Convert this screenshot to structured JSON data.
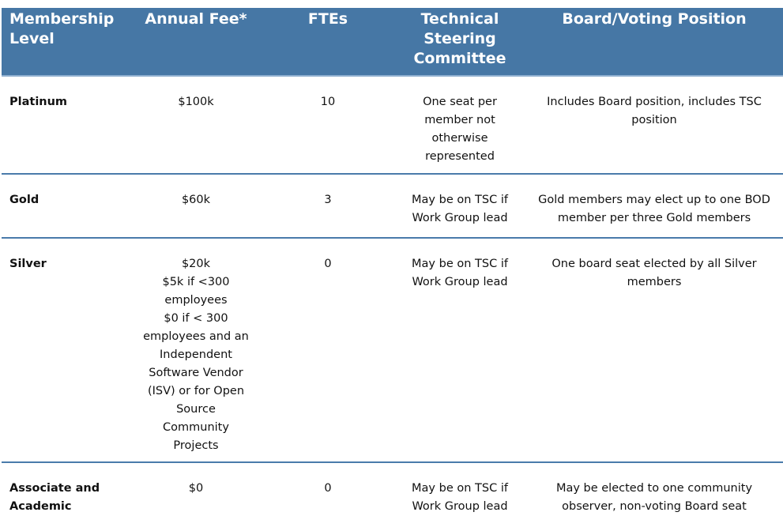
{
  "colors": {
    "header_bg": "#4677a5",
    "divider": "#4a7bab"
  },
  "headers": [
    "Membership Level",
    "Annual Fee*",
    "FTEs",
    "Technical Steering Committee",
    "Board/Voting Position"
  ],
  "rows": [
    {
      "level": "Platinum",
      "fee": [
        "$100k"
      ],
      "ftes": "10",
      "tsc": "One seat per member not otherwise represented",
      "board": "Includes Board position, includes TSC position"
    },
    {
      "level": "Gold",
      "fee": [
        "$60k"
      ],
      "ftes": "3",
      "tsc": "May be on TSC if Work Group lead",
      "board": "Gold members may elect up to one BOD member per three Gold members"
    },
    {
      "level": "Silver",
      "fee": [
        "$20k",
        "$5k if <300 employees",
        "$0 if < 300 employees and an Independent Software Vendor (ISV) or for Open Source Community Projects"
      ],
      "ftes": "0",
      "tsc": "May be on TSC if Work Group lead",
      "board": "One board seat elected by all Silver members"
    },
    {
      "level": "Associate and Academic",
      "fee": [
        "$0"
      ],
      "ftes": "0",
      "tsc": "May be on TSC if Work Group lead",
      "board": "May be elected to one community observer, non-voting Board seat"
    }
  ]
}
